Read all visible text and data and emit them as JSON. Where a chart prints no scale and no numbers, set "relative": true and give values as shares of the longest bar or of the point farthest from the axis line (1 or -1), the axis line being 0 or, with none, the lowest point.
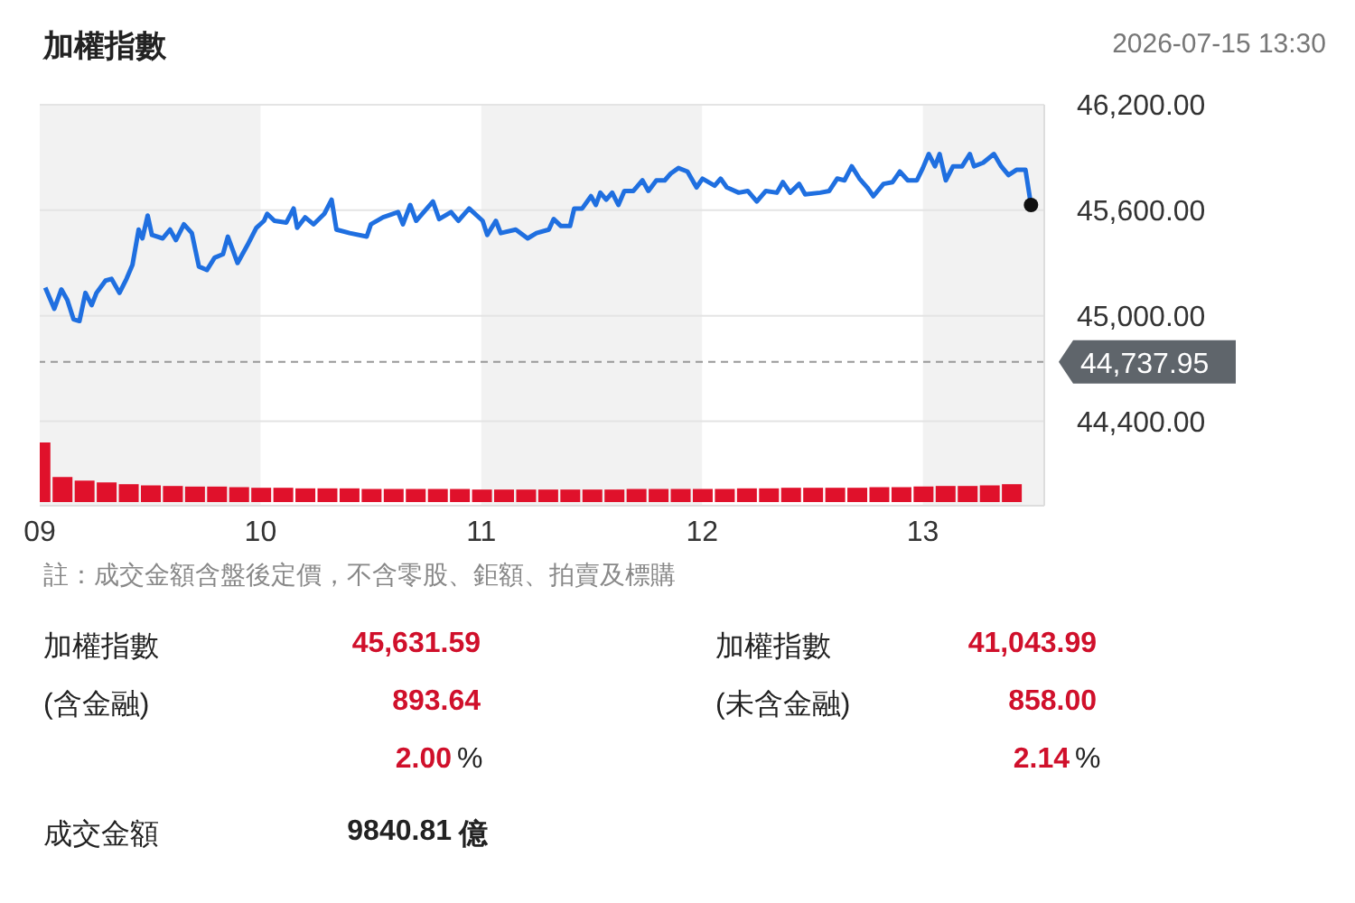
{
  "chart_data": [
    {
      "type": "line",
      "title": "加權指數",
      "subtitle": "2026-07-15 13:30",
      "annotations": [
        "註：成交金額含盤後定價，不含零股、鉅額、拍賣及標購"
      ],
      "x": [
        9.025,
        9.066,
        9.098,
        9.125,
        9.153,
        9.18,
        9.207,
        9.235,
        9.257,
        9.298,
        9.325,
        9.361,
        9.393,
        9.42,
        9.448,
        9.465,
        9.489,
        9.508,
        9.557,
        9.59,
        9.617,
        9.653,
        9.689,
        9.721,
        9.757,
        9.792,
        9.83,
        9.852,
        9.896,
        9.94,
        9.981,
        10.016,
        10.03,
        10.063,
        10.117,
        10.15,
        10.166,
        10.202,
        10.24,
        10.289,
        10.322,
        10.344,
        10.404,
        10.481,
        10.5,
        10.555,
        10.623,
        10.645,
        10.678,
        10.705,
        10.781,
        10.809,
        10.863,
        10.896,
        10.945,
        11.006,
        11.027,
        11.066,
        11.088,
        11.156,
        11.21,
        11.25,
        11.306,
        11.328,
        11.361,
        11.402,
        11.421,
        11.457,
        11.497,
        11.519,
        11.539,
        11.566,
        11.593,
        11.621,
        11.648,
        11.689,
        11.73,
        11.757,
        11.793,
        11.831,
        11.859,
        11.893,
        11.934,
        11.975,
        12.002,
        12.057,
        12.084,
        12.112,
        12.166,
        12.207,
        12.248,
        12.289,
        12.339,
        12.366,
        12.399,
        12.44,
        12.467,
        12.535,
        12.576,
        12.612,
        12.645,
        12.678,
        12.713,
        12.748,
        12.776,
        12.822,
        12.863,
        12.896,
        12.932,
        12.973,
        13.0,
        13.027,
        13.055,
        13.076,
        13.104,
        13.137,
        13.178,
        13.213,
        13.232,
        13.273,
        13.322,
        13.355,
        13.388,
        13.424,
        13.465,
        13.49
      ],
      "series": [
        {
          "color": "#1f6fe0",
          "values": [
            45160,
            45040,
            45150,
            45090,
            44980,
            44970,
            45130,
            45060,
            45130,
            45200,
            45210,
            45130,
            45210,
            45290,
            45490,
            45440,
            45570,
            45460,
            45440,
            45490,
            45430,
            45520,
            45470,
            45280,
            45260,
            45330,
            45350,
            45450,
            45300,
            45400,
            45500,
            45540,
            45580,
            45540,
            45530,
            45610,
            45500,
            45560,
            45520,
            45580,
            45660,
            45490,
            45470,
            45450,
            45520,
            45560,
            45590,
            45520,
            45630,
            45540,
            45650,
            45550,
            45590,
            45540,
            45610,
            45540,
            45460,
            45540,
            45470,
            45490,
            45440,
            45470,
            45490,
            45550,
            45510,
            45510,
            45610,
            45610,
            45680,
            45630,
            45700,
            45660,
            45700,
            45630,
            45710,
            45710,
            45770,
            45710,
            45770,
            45770,
            45810,
            45840,
            45820,
            45730,
            45780,
            45740,
            45780,
            45730,
            45700,
            45710,
            45650,
            45710,
            45700,
            45760,
            45700,
            45750,
            45690,
            45700,
            45710,
            45780,
            45770,
            45850,
            45780,
            45730,
            45680,
            45750,
            45760,
            45820,
            45770,
            45770,
            45840,
            45920,
            45850,
            45920,
            45770,
            45850,
            45850,
            45920,
            45850,
            45870,
            45920,
            45850,
            45800,
            45830,
            45830,
            45630
          ]
        }
      ],
      "xlim": [
        9,
        13.55
      ],
      "xticks": [
        {
          "value": 9,
          "label": "09"
        },
        10,
        11,
        12,
        13
      ],
      "ylim": [
        43920,
        46200
      ],
      "yticks": [
        {
          "value": 44400,
          "label": "44,400.00"
        },
        {
          "value": 45000,
          "label": "45,000.00"
        },
        {
          "value": 45600,
          "label": "45,600.00"
        },
        {
          "value": 46200,
          "label": "46,200.00"
        }
      ],
      "grid": "y",
      "marker": "none",
      "line_style": "solid",
      "ref_lines": [
        {
          "axis": "y",
          "value": 44737.95,
          "label": "44,737.95",
          "color": "#999999",
          "line_style": "dashed"
        }
      ],
      "bands": [
        {
          "axis": "x",
          "from": 9,
          "to": 10,
          "color": "#f2f2f2"
        },
        {
          "axis": "x",
          "from": 11,
          "to": 12,
          "color": "#f2f2f2"
        },
        {
          "axis": "x",
          "from": 13,
          "to": 13.55,
          "color": "#f2f2f2"
        }
      ]
    },
    {
      "type": "bar",
      "relative": true,
      "xlim": [
        9,
        13.55
      ],
      "color": "#e0112b",
      "x": [
        9.0,
        9.1,
        9.2,
        9.3,
        9.4,
        9.5,
        9.6,
        9.7,
        9.8,
        9.9,
        10.0,
        10.1,
        10.2,
        10.3,
        10.4,
        10.5,
        10.6,
        10.7,
        10.8,
        10.9,
        11.0,
        11.1,
        11.2,
        11.3,
        11.4,
        11.5,
        11.6,
        11.7,
        11.8,
        11.9,
        12.0,
        12.1,
        12.2,
        12.3,
        12.4,
        12.5,
        12.6,
        12.7,
        12.8,
        12.9,
        13.0,
        13.1,
        13.2,
        13.3,
        13.4
      ],
      "values": [
        1,
        0.42,
        0.36,
        0.33,
        0.3,
        0.28,
        0.27,
        0.26,
        0.26,
        0.25,
        0.24,
        0.24,
        0.23,
        0.23,
        0.23,
        0.22,
        0.22,
        0.22,
        0.22,
        0.22,
        0.21,
        0.21,
        0.21,
        0.21,
        0.21,
        0.21,
        0.21,
        0.22,
        0.22,
        0.22,
        0.22,
        0.22,
        0.23,
        0.23,
        0.24,
        0.24,
        0.24,
        0.24,
        0.25,
        0.25,
        0.26,
        0.27,
        0.27,
        0.28,
        0.3
      ]
    },
    {
      "type": "other",
      "annotations": [
        "加權指數",
        "45,631.59",
        "(含金融)",
        "893.64",
        "2.00",
        "%",
        "加權指數",
        "41,043.99",
        "(未含金融)",
        "858.00",
        "2.14",
        "%",
        "成交金額",
        "9840.81",
        "億"
      ]
    }
  ]
}
